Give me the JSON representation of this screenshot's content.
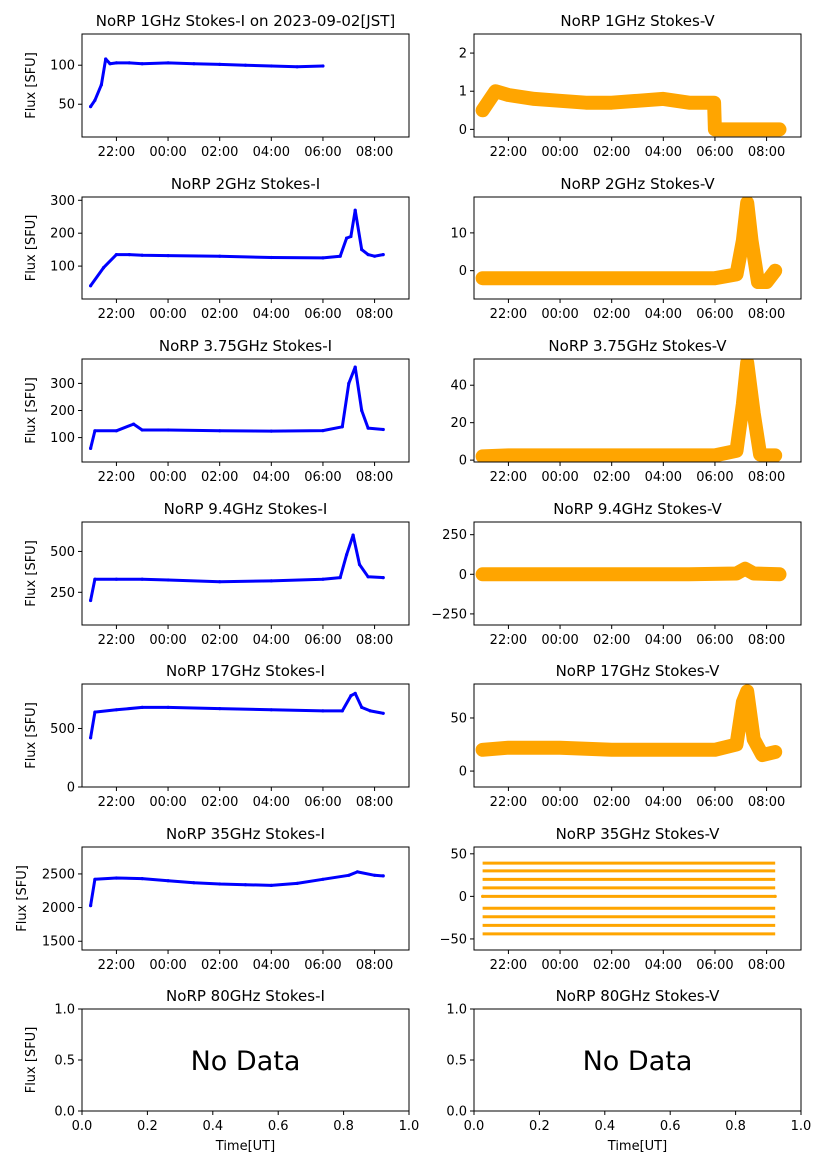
{
  "figure": {
    "x_ticks_time": [
      "22:00",
      "00:00",
      "02:00",
      "04:00",
      "06:00",
      "08:00"
    ],
    "x_ticks_frac": [
      "0.0",
      "0.2",
      "0.4",
      "0.6",
      "0.8",
      "1.0"
    ],
    "ylabel": "Flux [SFU]",
    "xlabel": "Time[UT]",
    "no_data": "No Data",
    "color_stokes_i": "#0000ff",
    "color_stokes_v": "#ffa500"
  },
  "chart_data": [
    {
      "type": "scatter",
      "title": "NoRP 1GHz Stokes-I on 2023-09-02[JST]",
      "ylabel": "Flux [SFU]",
      "yticks": [
        "50",
        "100"
      ],
      "ylim": [
        8,
        140
      ],
      "xlim": [
        "20:40",
        "09:20"
      ],
      "series": [
        {
          "name": "",
          "x": [
            "21:00",
            "21:10",
            "21:25",
            "21:35",
            "21:45",
            "22:00",
            "22:30",
            "23:00",
            "00:00",
            "01:00",
            "02:00",
            "03:00",
            "04:00",
            "05:00",
            "06:00"
          ],
          "y": [
            47,
            55,
            75,
            108,
            102,
            103,
            103,
            102,
            103,
            102,
            101,
            100,
            99,
            98,
            99
          ]
        }
      ]
    },
    {
      "type": "scatter",
      "title": "NoRP 1GHz Stokes-V",
      "ylabel": "",
      "yticks": [
        "0",
        "1",
        "2"
      ],
      "ylim": [
        -0.2,
        2.5
      ],
      "xlim": [
        "20:40",
        "09:20"
      ],
      "series": [
        {
          "name": "",
          "x": [
            "21:00",
            "21:30",
            "22:00",
            "23:00",
            "00:00",
            "01:00",
            "02:00",
            "03:00",
            "04:00",
            "05:00",
            "05:58",
            "06:00",
            "08:30"
          ],
          "y": [
            0.5,
            1.0,
            0.9,
            0.8,
            0.75,
            0.7,
            0.7,
            0.75,
            0.8,
            0.7,
            0.7,
            0.0,
            0.0
          ]
        }
      ]
    },
    {
      "type": "scatter",
      "title": "NoRP 2GHz Stokes-I",
      "ylabel": "Flux [SFU]",
      "yticks": [
        "100",
        "200",
        "300"
      ],
      "ylim": [
        0,
        310
      ],
      "xlim": [
        "20:40",
        "09:20"
      ],
      "series": [
        {
          "name": "",
          "x": [
            "21:00",
            "21:30",
            "22:00",
            "22:30",
            "23:00",
            "00:00",
            "02:00",
            "04:00",
            "06:00",
            "06:40",
            "06:55",
            "07:05",
            "07:15",
            "07:30",
            "07:45",
            "08:00",
            "08:20"
          ],
          "y": [
            40,
            95,
            135,
            135,
            133,
            132,
            130,
            126,
            125,
            130,
            185,
            190,
            270,
            150,
            135,
            130,
            135
          ]
        }
      ]
    },
    {
      "type": "scatter",
      "title": "NoRP 2GHz Stokes-V",
      "ylabel": "",
      "yticks": [
        "0",
        "10"
      ],
      "ylim": [
        -7.5,
        19.5
      ],
      "xlim": [
        "20:40",
        "09:20"
      ],
      "series": [
        {
          "name": "",
          "x": [
            "21:00",
            "22:00",
            "00:00",
            "02:00",
            "04:00",
            "06:00",
            "06:50",
            "07:05",
            "07:15",
            "07:25",
            "07:40",
            "08:00",
            "08:20"
          ],
          "y": [
            -2,
            -2,
            -2,
            -2,
            -2,
            -2,
            -1,
            8,
            18,
            8,
            -3,
            -3,
            0
          ]
        }
      ]
    },
    {
      "type": "scatter",
      "title": "NoRP 3.75GHz Stokes-I",
      "ylabel": "Flux [SFU]",
      "yticks": [
        "100",
        "200",
        "300"
      ],
      "ylim": [
        10,
        390
      ],
      "xlim": [
        "20:40",
        "09:20"
      ],
      "series": [
        {
          "name": "",
          "x": [
            "21:00",
            "21:10",
            "22:00",
            "22:40",
            "23:00",
            "00:00",
            "02:00",
            "04:00",
            "06:00",
            "06:45",
            "07:00",
            "07:15",
            "07:30",
            "07:45",
            "08:20"
          ],
          "y": [
            60,
            125,
            125,
            150,
            128,
            128,
            125,
            124,
            126,
            140,
            300,
            360,
            200,
            135,
            130
          ]
        }
      ]
    },
    {
      "type": "scatter",
      "title": "NoRP 3.75GHz Stokes-V",
      "ylabel": "",
      "yticks": [
        "0",
        "20",
        "40"
      ],
      "ylim": [
        -1,
        54
      ],
      "xlim": [
        "20:40",
        "09:20"
      ],
      "series": [
        {
          "name": "",
          "x": [
            "21:00",
            "22:00",
            "00:00",
            "02:00",
            "04:00",
            "06:00",
            "06:50",
            "07:05",
            "07:15",
            "07:30",
            "07:45",
            "08:00",
            "08:20"
          ],
          "y": [
            2,
            2.5,
            2.5,
            2.5,
            2.5,
            2.5,
            5,
            30,
            52,
            25,
            3,
            2.5,
            2.5
          ]
        }
      ]
    },
    {
      "type": "scatter",
      "title": "NoRP 9.4GHz Stokes-I",
      "ylabel": "Flux [SFU]",
      "yticks": [
        "250",
        "500"
      ],
      "ylim": [
        50,
        680
      ],
      "xlim": [
        "20:40",
        "09:20"
      ],
      "series": [
        {
          "name": "",
          "x": [
            "21:00",
            "21:10",
            "22:00",
            "23:00",
            "00:00",
            "02:00",
            "04:00",
            "06:00",
            "06:40",
            "06:55",
            "07:10",
            "07:25",
            "07:45",
            "08:20"
          ],
          "y": [
            200,
            330,
            330,
            330,
            325,
            315,
            320,
            330,
            340,
            480,
            600,
            420,
            345,
            340
          ]
        }
      ]
    },
    {
      "type": "scatter",
      "title": "NoRP 9.4GHz Stokes-V",
      "ylabel": "",
      "yticks": [
        "−250",
        "0",
        "250"
      ],
      "ylim": [
        -320,
        330
      ],
      "xlim": [
        "20:40",
        "09:20"
      ],
      "series": [
        {
          "name": "",
          "x": [
            "21:00",
            "23:00",
            "01:00",
            "03:00",
            "05:00",
            "06:50",
            "07:10",
            "07:30",
            "08:30"
          ],
          "y": [
            0,
            0,
            0,
            0,
            0,
            5,
            35,
            5,
            0
          ]
        }
      ]
    },
    {
      "type": "scatter",
      "title": "NoRP 17GHz Stokes-I",
      "ylabel": "Flux [SFU]",
      "yticks": [
        "0",
        "500"
      ],
      "ylim": [
        0,
        880
      ],
      "xlim": [
        "20:40",
        "09:20"
      ],
      "series": [
        {
          "name": "",
          "x": [
            "21:00",
            "21:10",
            "22:00",
            "23:00",
            "00:00",
            "02:00",
            "04:00",
            "06:00",
            "06:45",
            "07:05",
            "07:15",
            "07:30",
            "07:50",
            "08:20"
          ],
          "y": [
            420,
            640,
            660,
            680,
            680,
            670,
            660,
            650,
            650,
            780,
            800,
            680,
            650,
            630
          ]
        }
      ]
    },
    {
      "type": "scatter",
      "title": "NoRP 17GHz Stokes-V",
      "ylabel": "",
      "yticks": [
        "0",
        "50"
      ],
      "ylim": [
        -15,
        82
      ],
      "xlim": [
        "20:40",
        "09:20"
      ],
      "series": [
        {
          "name": "",
          "x": [
            "21:00",
            "22:00",
            "00:00",
            "02:00",
            "04:00",
            "06:00",
            "06:50",
            "07:05",
            "07:15",
            "07:30",
            "07:50",
            "08:20"
          ],
          "y": [
            20,
            22,
            22,
            20,
            20,
            20,
            25,
            65,
            75,
            30,
            15,
            18
          ]
        }
      ]
    },
    {
      "type": "scatter",
      "title": "NoRP 35GHz Stokes-I",
      "ylabel": "Flux [SFU]",
      "yticks": [
        "1500",
        "2000",
        "2500"
      ],
      "ylim": [
        1370,
        2900
      ],
      "xlim": [
        "20:40",
        "09:20"
      ],
      "series": [
        {
          "name": "",
          "x": [
            "21:00",
            "21:10",
            "22:00",
            "23:00",
            "00:00",
            "01:00",
            "02:00",
            "03:00",
            "04:00",
            "05:00",
            "06:00",
            "07:00",
            "07:20",
            "08:00",
            "08:20"
          ],
          "y": [
            2030,
            2420,
            2440,
            2430,
            2400,
            2370,
            2350,
            2340,
            2330,
            2360,
            2420,
            2480,
            2530,
            2480,
            2470
          ]
        }
      ]
    },
    {
      "type": "scatter",
      "title": "NoRP 35GHz Stokes-V",
      "ylabel": "",
      "yticks": [
        "−50",
        "0",
        "50"
      ],
      "ylim": [
        -63,
        58
      ],
      "xlim": [
        "20:40",
        "09:20"
      ],
      "levels": [
        -44,
        -34,
        -24,
        -14,
        0,
        10,
        20,
        30,
        39
      ],
      "series": [
        {
          "name": "",
          "x": [
            "21:00",
            "08:20"
          ],
          "y": [
            0,
            0
          ]
        }
      ]
    },
    {
      "type": "scatter",
      "title": "NoRP 80GHz Stokes-I",
      "ylabel": "Flux [SFU]",
      "xlabel": "Time[UT]",
      "yticks": [
        "0.0",
        "0.5",
        "1.0"
      ],
      "xlim": [
        0,
        1
      ],
      "ylim": [
        0,
        1
      ],
      "no_data": true,
      "series": []
    },
    {
      "type": "scatter",
      "title": "NoRP 80GHz Stokes-V",
      "ylabel": "",
      "xlabel": "Time[UT]",
      "yticks": [
        "0.0",
        "0.5",
        "1.0"
      ],
      "xlim": [
        0,
        1
      ],
      "ylim": [
        0,
        1
      ],
      "no_data": true,
      "series": []
    }
  ]
}
